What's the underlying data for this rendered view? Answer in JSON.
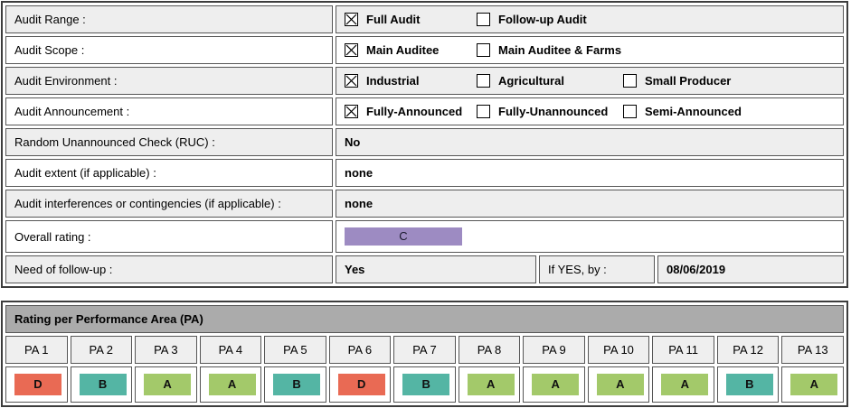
{
  "colors": {
    "rating_a": "#a3c96a",
    "rating_b": "#54b5a4",
    "rating_c": "#9d8bc2",
    "rating_d": "#e96a54",
    "shade_row": "#eeeeee",
    "title_bar": "#ababab"
  },
  "audit_info": {
    "rows": [
      {
        "label": "Audit Range :",
        "options": [
          {
            "label": "Full Audit",
            "checked": true
          },
          {
            "label": "Follow-up Audit",
            "checked": false
          }
        ]
      },
      {
        "label": "Audit Scope :",
        "options": [
          {
            "label": "Main Auditee",
            "checked": true
          },
          {
            "label": "Main Auditee & Farms",
            "checked": false
          }
        ]
      },
      {
        "label": "Audit Environment :",
        "options": [
          {
            "label": "Industrial",
            "checked": true
          },
          {
            "label": "Agricultural",
            "checked": false
          },
          {
            "label": "Small Producer",
            "checked": false
          }
        ]
      },
      {
        "label": "Audit Announcement :",
        "options": [
          {
            "label": "Fully-Announced",
            "checked": true
          },
          {
            "label": "Fully-Unannounced",
            "checked": false
          },
          {
            "label": "Semi-Announced",
            "checked": false
          }
        ]
      },
      {
        "label": "Random Unannounced Check (RUC) :",
        "value": "No"
      },
      {
        "label": "Audit extent (if applicable) :",
        "value": "none"
      },
      {
        "label": "Audit interferences or contingencies (if applicable) :",
        "value": "none"
      },
      {
        "label": "Overall rating :",
        "rating": "C"
      },
      {
        "label": "Need of follow-up :",
        "value": "Yes",
        "followup": {
          "label": "If YES, by :",
          "value": "08/06/2019"
        }
      }
    ]
  },
  "pa_section": {
    "title": "Rating per Performance Area (PA)",
    "columns": [
      "PA 1",
      "PA 2",
      "PA 3",
      "PA 4",
      "PA 5",
      "PA 6",
      "PA 7",
      "PA 8",
      "PA 9",
      "PA 10",
      "PA 11",
      "PA 12",
      "PA 13"
    ],
    "ratings": [
      "D",
      "B",
      "A",
      "A",
      "B",
      "D",
      "B",
      "A",
      "A",
      "A",
      "A",
      "B",
      "A"
    ]
  }
}
